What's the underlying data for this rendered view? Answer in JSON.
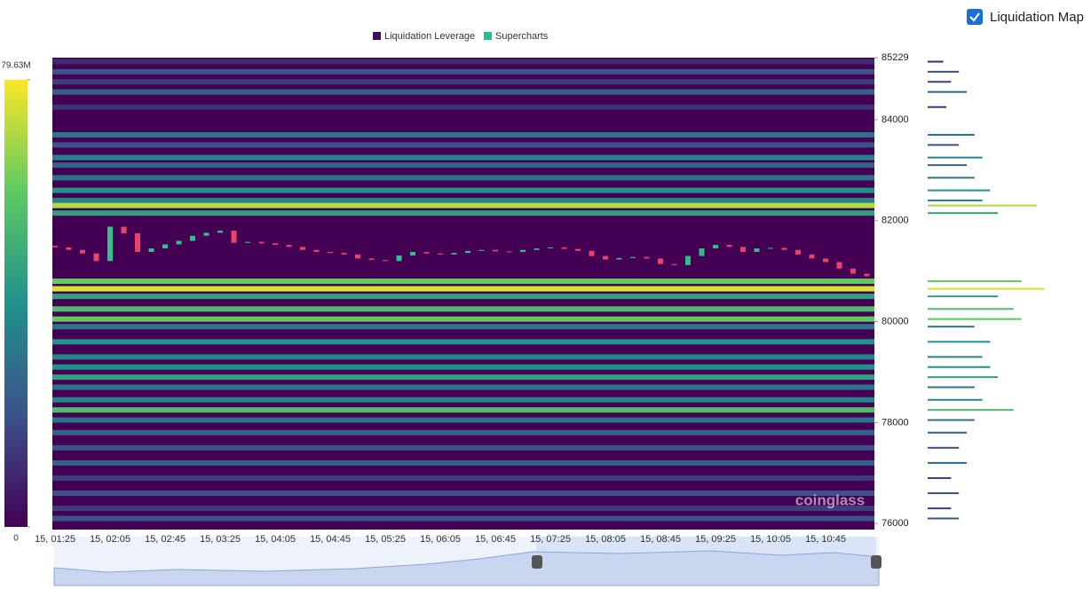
{
  "header": {
    "checkbox_label": "Liquidation Map"
  },
  "chart_data": {
    "type": "heatmap",
    "watermark": "coinglass",
    "series": [
      {
        "name": "Liquidation Leverage",
        "color": "#3b0f55"
      },
      {
        "name": "Supercharts",
        "color": "#22c08a"
      }
    ],
    "clim": [
      0,
      79.63
    ],
    "cticks": [
      0,
      {
        "value": 79.63,
        "label": "79.63M"
      }
    ],
    "ylim": [
      75880,
      85229
    ],
    "yticks": [
      76000,
      78000,
      80000,
      82000,
      84000,
      85229
    ],
    "categories": [
      "15, 01:25",
      null,
      null,
      null,
      "15, 02:05",
      null,
      null,
      null,
      "15, 02:45",
      null,
      null,
      null,
      "15, 03:25",
      null,
      null,
      null,
      "15, 04:05",
      null,
      null,
      null,
      "15, 04:45",
      null,
      null,
      null,
      "15, 05:25",
      null,
      null,
      null,
      "15, 06:05",
      null,
      null,
      null,
      "15, 06:45",
      null,
      null,
      null,
      "15, 07:25",
      null,
      null,
      null,
      "15, 08:05",
      null,
      null,
      null,
      "15, 08:45",
      null,
      null,
      null,
      "15, 09:25",
      null,
      null,
      null,
      "15, 10:05",
      null,
      null,
      null,
      "15, 10:45",
      null,
      null,
      null
    ],
    "open": [
      81500,
      81470,
      81420,
      81350,
      81200,
      81880,
      81750,
      81380,
      81450,
      81530,
      81600,
      81700,
      81760,
      81800,
      81560,
      81580,
      81550,
      81520,
      81480,
      81420,
      81380,
      81360,
      81330,
      81250,
      81220,
      81200,
      81310,
      81380,
      81350,
      81330,
      81360,
      81400,
      81420,
      81390,
      81380,
      81420,
      81450,
      81470,
      81440,
      81400,
      81300,
      81230,
      81260,
      81280,
      81250,
      81140,
      81120,
      81300,
      81450,
      81520,
      81480,
      81380,
      81450,
      81460,
      81420,
      81330,
      81250,
      81180,
      81050,
      80950
    ],
    "close": [
      81470,
      81420,
      81350,
      81200,
      81880,
      81750,
      81380,
      81450,
      81530,
      81600,
      81700,
      81760,
      81800,
      81560,
      81580,
      81550,
      81520,
      81480,
      81420,
      81380,
      81360,
      81330,
      81250,
      81220,
      81200,
      81310,
      81380,
      81350,
      81330,
      81360,
      81400,
      81420,
      81390,
      81380,
      81420,
      81450,
      81470,
      81440,
      81400,
      81300,
      81230,
      81260,
      81280,
      81250,
      81140,
      81120,
      81300,
      81450,
      81520,
      81480,
      81380,
      81450,
      81460,
      81420,
      81330,
      81250,
      81180,
      81050,
      80950,
      80900
    ],
    "levels": {
      "price": [
        85150,
        84950,
        84750,
        84550,
        84250,
        83700,
        83500,
        83250,
        83100,
        82850,
        82600,
        82400,
        82300,
        82150,
        80800,
        80650,
        80500,
        80250,
        80050,
        79900,
        79600,
        79300,
        79100,
        78900,
        78700,
        78450,
        78250,
        78050,
        77800,
        77500,
        77200,
        76900,
        76600,
        76300,
        76100
      ],
      "values": [
        10,
        20,
        15,
        25,
        12,
        30,
        20,
        35,
        25,
        30,
        40,
        35,
        70,
        45,
        60,
        75,
        45,
        55,
        60,
        30,
        40,
        35,
        40,
        45,
        30,
        35,
        55,
        30,
        25,
        20,
        25,
        15,
        20,
        15,
        20
      ]
    }
  }
}
